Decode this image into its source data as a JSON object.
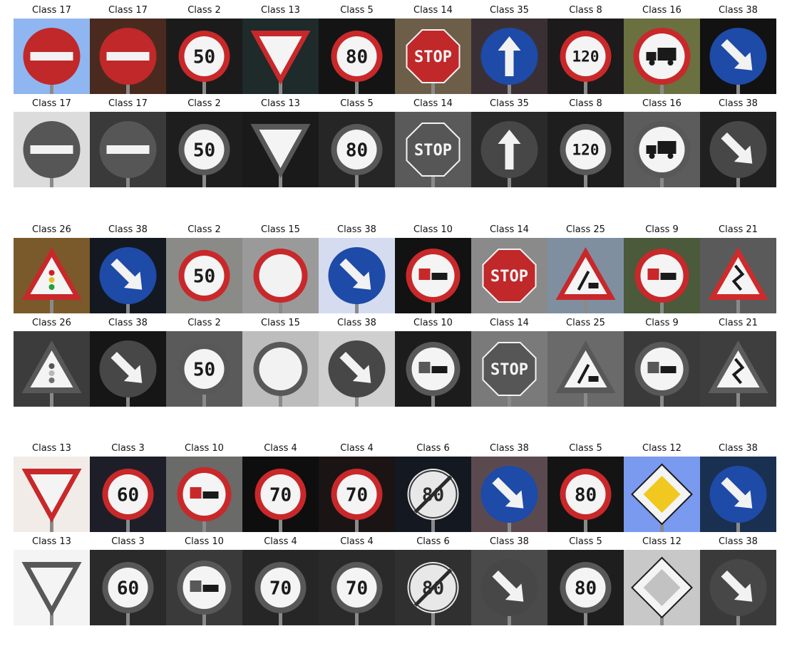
{
  "groups": [
    {
      "color": [
        {
          "title": "Class 17",
          "sign": "noentry",
          "bg": "#8fb6f0",
          "glyph": ""
        },
        {
          "title": "Class 17",
          "sign": "noentry",
          "bg": "#4a2a1e",
          "glyph": ""
        },
        {
          "title": "Class 2",
          "sign": "speed",
          "bg": "#1b1b1b",
          "glyph": "50"
        },
        {
          "title": "Class 13",
          "sign": "yield",
          "bg": "#1f2a2a",
          "glyph": ""
        },
        {
          "title": "Class 5",
          "sign": "speed",
          "bg": "#141414",
          "glyph": "80"
        },
        {
          "title": "Class 14",
          "sign": "stop",
          "bg": "#6d5e4a",
          "glyph": "STOP"
        },
        {
          "title": "Class 35",
          "sign": "arrowup",
          "bg": "#3a3034",
          "glyph": ""
        },
        {
          "title": "Class 8",
          "sign": "speed",
          "bg": "#1c1a1a",
          "glyph": "120"
        },
        {
          "title": "Class 16",
          "sign": "truck",
          "bg": "#6b7040",
          "glyph": ""
        },
        {
          "title": "Class 38",
          "sign": "arrowdr",
          "bg": "#121212",
          "glyph": ""
        }
      ],
      "gray": [
        {
          "title": "Class 17",
          "sign": "noentry",
          "bg": "#dcdcdc",
          "glyph": ""
        },
        {
          "title": "Class 17",
          "sign": "noentry",
          "bg": "#3a3a3a",
          "glyph": ""
        },
        {
          "title": "Class 2",
          "sign": "speed",
          "bg": "#1e1e1e",
          "glyph": "50"
        },
        {
          "title": "Class 13",
          "sign": "yield",
          "bg": "#1a1a1a",
          "glyph": ""
        },
        {
          "title": "Class 5",
          "sign": "speed",
          "bg": "#262626",
          "glyph": "80"
        },
        {
          "title": "Class 14",
          "sign": "stop",
          "bg": "#5a5a5a",
          "glyph": "STOP"
        },
        {
          "title": "Class 35",
          "sign": "arrowup",
          "bg": "#2a2a2a",
          "glyph": ""
        },
        {
          "title": "Class 8",
          "sign": "speed",
          "bg": "#1e1e1e",
          "glyph": "120"
        },
        {
          "title": "Class 16",
          "sign": "truck",
          "bg": "#5c5c5c",
          "glyph": ""
        },
        {
          "title": "Class 38",
          "sign": "arrowdr",
          "bg": "#202020",
          "glyph": ""
        }
      ]
    },
    {
      "color": [
        {
          "title": "Class 26",
          "sign": "signals",
          "bg": "#7a5a2a",
          "glyph": ""
        },
        {
          "title": "Class 38",
          "sign": "arrowdr",
          "bg": "#141820",
          "glyph": ""
        },
        {
          "title": "Class 2",
          "sign": "speed",
          "bg": "#8a8a86",
          "glyph": "50"
        },
        {
          "title": "Class 15",
          "sign": "noveh",
          "bg": "#9a9a9a",
          "glyph": ""
        },
        {
          "title": "Class 38",
          "sign": "arrowdr",
          "bg": "#d6dcf0",
          "glyph": ""
        },
        {
          "title": "Class 10",
          "sign": "nopass",
          "bg": "#121212",
          "glyph": ""
        },
        {
          "title": "Class 14",
          "sign": "stop",
          "bg": "#8a8a8a",
          "glyph": "STOP"
        },
        {
          "title": "Class 25",
          "sign": "roadwork",
          "bg": "#7f8fa0",
          "glyph": ""
        },
        {
          "title": "Class 9",
          "sign": "nopass",
          "bg": "#4a5a3a",
          "glyph": ""
        },
        {
          "title": "Class 21",
          "sign": "curve",
          "bg": "#5a5a5a",
          "glyph": ""
        }
      ],
      "gray": [
        {
          "title": "Class 26",
          "sign": "signals",
          "bg": "#3c3c3c",
          "glyph": ""
        },
        {
          "title": "Class 38",
          "sign": "arrowdr",
          "bg": "#161616",
          "glyph": ""
        },
        {
          "title": "Class 2",
          "sign": "speed",
          "bg": "#5a5a5a",
          "glyph": "50"
        },
        {
          "title": "Class 15",
          "sign": "noveh",
          "bg": "#bdbdbd",
          "glyph": ""
        },
        {
          "title": "Class 38",
          "sign": "arrowdr",
          "bg": "#cfcfcf",
          "glyph": ""
        },
        {
          "title": "Class 10",
          "sign": "nopass",
          "bg": "#1c1c1c",
          "glyph": ""
        },
        {
          "title": "Class 14",
          "sign": "stop",
          "bg": "#7a7a7a",
          "glyph": "STOP"
        },
        {
          "title": "Class 25",
          "sign": "roadwork",
          "bg": "#6a6a6a",
          "glyph": ""
        },
        {
          "title": "Class 9",
          "sign": "nopass",
          "bg": "#3a3a3a",
          "glyph": ""
        },
        {
          "title": "Class 21",
          "sign": "curve",
          "bg": "#3e3e3e",
          "glyph": ""
        }
      ]
    },
    {
      "color": [
        {
          "title": "Class 13",
          "sign": "yield",
          "bg": "#f2ece8",
          "glyph": ""
        },
        {
          "title": "Class 3",
          "sign": "speed",
          "bg": "#1e1e28",
          "glyph": "60"
        },
        {
          "title": "Class 10",
          "sign": "nopass",
          "bg": "#6a6a68",
          "glyph": ""
        },
        {
          "title": "Class 4",
          "sign": "speed",
          "bg": "#0e0e0e",
          "glyph": "70"
        },
        {
          "title": "Class 4",
          "sign": "speed",
          "bg": "#1a1414",
          "glyph": "70"
        },
        {
          "title": "Class 6",
          "sign": "endspeed",
          "bg": "#141820",
          "glyph": "80"
        },
        {
          "title": "Class 38",
          "sign": "arrowdr",
          "bg": "#5a4a50",
          "glyph": ""
        },
        {
          "title": "Class 5",
          "sign": "speed",
          "bg": "#141414",
          "glyph": "80"
        },
        {
          "title": "Class 12",
          "sign": "priority",
          "bg": "#7a9af0",
          "glyph": ""
        },
        {
          "title": "Class 38",
          "sign": "arrowdr",
          "bg": "#1a3050",
          "glyph": ""
        }
      ],
      "gray": [
        {
          "title": "Class 13",
          "sign": "yield",
          "bg": "#f4f4f4",
          "glyph": ""
        },
        {
          "title": "Class 3",
          "sign": "speed",
          "bg": "#2a2a2a",
          "glyph": "60"
        },
        {
          "title": "Class 10",
          "sign": "nopass",
          "bg": "#3a3a3a",
          "glyph": ""
        },
        {
          "title": "Class 4",
          "sign": "speed",
          "bg": "#262626",
          "glyph": "70"
        },
        {
          "title": "Class 4",
          "sign": "speed",
          "bg": "#2a2a2a",
          "glyph": "70"
        },
        {
          "title": "Class 6",
          "sign": "endspeed",
          "bg": "#303030",
          "glyph": "80"
        },
        {
          "title": "Class 38",
          "sign": "arrowdr",
          "bg": "#4a4a4a",
          "glyph": ""
        },
        {
          "title": "Class 5",
          "sign": "speed",
          "bg": "#1e1e1e",
          "glyph": "80"
        },
        {
          "title": "Class 12",
          "sign": "priority",
          "bg": "#c8c8c8",
          "glyph": ""
        },
        {
          "title": "Class 38",
          "sign": "arrowdr",
          "bg": "#3a3a3a",
          "glyph": ""
        }
      ]
    }
  ]
}
